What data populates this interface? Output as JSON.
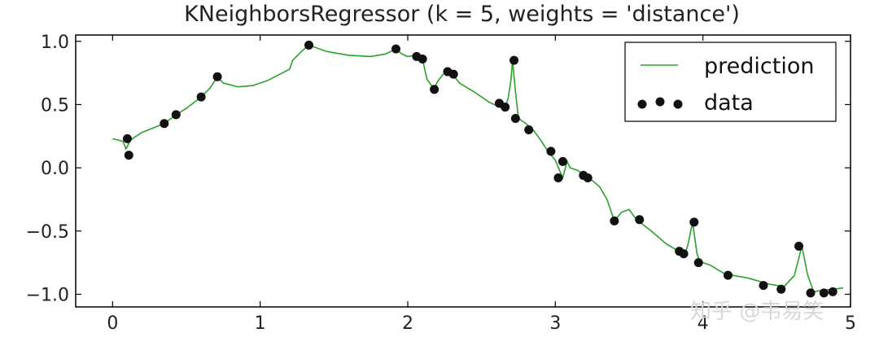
{
  "chart_data": {
    "type": "scatter",
    "title": "KNeighborsRegressor (k = 5, weights = 'distance')",
    "xlim": [
      -0.25,
      5.0
    ],
    "ylim": [
      -1.1,
      1.05
    ],
    "x_ticks": [
      "0",
      "1",
      "2",
      "3",
      "4",
      "5"
    ],
    "y_ticks": [
      "−1.0",
      "−0.5",
      "0.0",
      "0.5",
      "1.0"
    ],
    "grid": false,
    "legend_position": "top-right",
    "series": [
      {
        "name": "prediction",
        "kind": "line",
        "color": "#2ca02c",
        "x": [
          0.0,
          0.07,
          0.09,
          0.1,
          0.12,
          0.2,
          0.35,
          0.43,
          0.5,
          0.6,
          0.66,
          0.71,
          0.75,
          0.85,
          0.95,
          1.05,
          1.15,
          1.2,
          1.22,
          1.28,
          1.33,
          1.45,
          1.6,
          1.75,
          1.85,
          1.92,
          1.96,
          2.0,
          2.05,
          2.1,
          2.13,
          2.18,
          2.2,
          2.24,
          2.27,
          2.31,
          2.35,
          2.45,
          2.55,
          2.62,
          2.66,
          2.68,
          2.7,
          2.71,
          2.73,
          2.75,
          2.8,
          2.85,
          2.9,
          2.95,
          3.0,
          3.05,
          3.08,
          3.1,
          3.15,
          3.2,
          3.25,
          3.3,
          3.35,
          3.4,
          3.45,
          3.5,
          3.55,
          3.65,
          3.75,
          3.85,
          3.88,
          3.9,
          3.93,
          3.96,
          3.98,
          4.0,
          4.05,
          4.15,
          4.3,
          4.45,
          4.55,
          4.62,
          4.67,
          4.71,
          4.75,
          4.8,
          4.88,
          4.95
        ],
        "y": [
          0.23,
          0.21,
          0.15,
          0.17,
          0.22,
          0.28,
          0.35,
          0.42,
          0.47,
          0.56,
          0.63,
          0.72,
          0.67,
          0.64,
          0.65,
          0.69,
          0.75,
          0.78,
          0.85,
          0.92,
          0.97,
          0.92,
          0.89,
          0.88,
          0.9,
          0.94,
          0.9,
          0.88,
          0.89,
          0.86,
          0.7,
          0.62,
          0.68,
          0.74,
          0.76,
          0.73,
          0.67,
          0.6,
          0.52,
          0.48,
          0.47,
          0.55,
          0.7,
          0.85,
          0.6,
          0.39,
          0.35,
          0.3,
          0.22,
          0.13,
          0.06,
          -0.08,
          0.05,
          0.0,
          -0.02,
          -0.06,
          -0.1,
          -0.15,
          -0.25,
          -0.42,
          -0.35,
          -0.33,
          -0.41,
          -0.5,
          -0.6,
          -0.67,
          -0.68,
          -0.6,
          -0.43,
          -0.68,
          -0.74,
          -0.75,
          -0.77,
          -0.84,
          -0.87,
          -0.92,
          -0.94,
          -0.85,
          -0.62,
          -0.85,
          -0.98,
          -0.97,
          -0.96,
          -0.95
        ]
      },
      {
        "name": "data",
        "kind": "scatter",
        "color": "#111111",
        "x": [
          0.1,
          0.11,
          0.35,
          0.43,
          0.6,
          0.71,
          1.33,
          1.92,
          2.06,
          2.1,
          2.18,
          2.27,
          2.31,
          2.62,
          2.66,
          2.72,
          2.73,
          2.82,
          2.97,
          3.02,
          3.05,
          3.19,
          3.22,
          3.4,
          3.57,
          3.84,
          3.87,
          3.94,
          3.97,
          4.17,
          4.41,
          4.53,
          4.65,
          4.73,
          4.82,
          4.88
        ],
        "y": [
          0.23,
          0.1,
          0.35,
          0.42,
          0.56,
          0.72,
          0.97,
          0.94,
          0.88,
          0.86,
          0.62,
          0.76,
          0.74,
          0.51,
          0.48,
          0.85,
          0.39,
          0.3,
          0.13,
          -0.08,
          0.05,
          -0.06,
          -0.08,
          -0.42,
          -0.41,
          -0.66,
          -0.68,
          -0.43,
          -0.75,
          -0.85,
          -0.93,
          -0.96,
          -0.62,
          -0.99,
          -0.99,
          -0.98
        ]
      }
    ]
  },
  "watermark": "知乎 @韦易笑"
}
